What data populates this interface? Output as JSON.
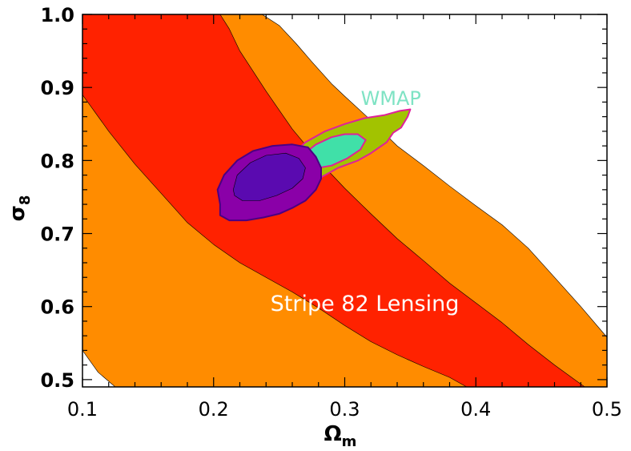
{
  "chart_data": {
    "type": "area",
    "title": "",
    "xlabel": "Ωm",
    "xlabel_main": "Ω",
    "xlabel_sub": "m",
    "ylabel": "σ8",
    "ylabel_main": "σ",
    "ylabel_sub": "8",
    "xlim": [
      0.1,
      0.5
    ],
    "ylim": [
      0.49,
      1.0
    ],
    "xticks": [
      0.1,
      0.2,
      0.3,
      0.4,
      0.5
    ],
    "yticks": [
      0.5,
      0.6,
      0.7,
      0.8,
      0.9,
      1.0
    ],
    "xtick_labels": [
      "0.1",
      "0.2",
      "0.3",
      "0.4",
      "0.5"
    ],
    "ytick_labels": [
      "0.5",
      "0.6",
      "0.7",
      "0.8",
      "0.9",
      "1.0"
    ],
    "grid": false,
    "annotations": [
      {
        "text": "Stripe 82 Lensing",
        "x": 0.3,
        "y": 0.605,
        "color": "#ffffff"
      },
      {
        "text": "WMAP",
        "x": 0.32,
        "y": 0.885,
        "color": "#7fe3c4"
      }
    ],
    "regions": [
      {
        "name": "lensing-95",
        "color": "#ff8c00",
        "points": [
          [
            0.1,
            0.49
          ],
          [
            0.1,
            1.0
          ],
          [
            0.237,
            1.0
          ],
          [
            0.25,
            0.985
          ],
          [
            0.263,
            0.96
          ],
          [
            0.275,
            0.935
          ],
          [
            0.29,
            0.905
          ],
          [
            0.3,
            0.888
          ],
          [
            0.32,
            0.855
          ],
          [
            0.34,
            0.82
          ],
          [
            0.36,
            0.793
          ],
          [
            0.38,
            0.765
          ],
          [
            0.4,
            0.738
          ],
          [
            0.42,
            0.712
          ],
          [
            0.44,
            0.68
          ],
          [
            0.46,
            0.64
          ],
          [
            0.48,
            0.6
          ],
          [
            0.5,
            0.558
          ],
          [
            0.5,
            0.49
          ],
          [
            0.5,
            0.49
          ],
          [
            0.5,
            0.49
          ]
        ],
        "lower": [
          [
            0.125,
            0.49
          ],
          [
            0.112,
            0.51
          ],
          [
            0.1,
            0.54
          ]
        ]
      },
      {
        "name": "lensing-68",
        "color": "#ff2200",
        "points": [
          [
            0.1,
            0.89
          ],
          [
            0.12,
            0.84
          ],
          [
            0.14,
            0.795
          ],
          [
            0.16,
            0.755
          ],
          [
            0.18,
            0.715
          ],
          [
            0.2,
            0.685
          ],
          [
            0.22,
            0.66
          ],
          [
            0.24,
            0.64
          ],
          [
            0.26,
            0.62
          ],
          [
            0.28,
            0.598
          ],
          [
            0.3,
            0.574
          ],
          [
            0.32,
            0.552
          ],
          [
            0.34,
            0.534
          ],
          [
            0.36,
            0.518
          ],
          [
            0.38,
            0.503
          ],
          [
            0.393,
            0.49
          ],
          [
            0.483,
            0.49
          ],
          [
            0.46,
            0.52
          ],
          [
            0.44,
            0.548
          ],
          [
            0.42,
            0.578
          ],
          [
            0.4,
            0.605
          ],
          [
            0.38,
            0.632
          ],
          [
            0.36,
            0.663
          ],
          [
            0.34,
            0.693
          ],
          [
            0.32,
            0.727
          ],
          [
            0.3,
            0.762
          ],
          [
            0.28,
            0.8
          ],
          [
            0.26,
            0.843
          ],
          [
            0.24,
            0.895
          ],
          [
            0.22,
            0.95
          ],
          [
            0.212,
            0.98
          ],
          [
            0.205,
            1.0
          ],
          [
            0.1,
            1.0
          ]
        ]
      },
      {
        "name": "wmap-95",
        "color": "#a2c300",
        "outline": "#e0209a",
        "points": [
          [
            0.255,
            0.8
          ],
          [
            0.27,
            0.825
          ],
          [
            0.285,
            0.84
          ],
          [
            0.3,
            0.85
          ],
          [
            0.315,
            0.858
          ],
          [
            0.33,
            0.862
          ],
          [
            0.342,
            0.868
          ],
          [
            0.35,
            0.87
          ],
          [
            0.348,
            0.86
          ],
          [
            0.343,
            0.845
          ],
          [
            0.337,
            0.838
          ],
          [
            0.332,
            0.825
          ],
          [
            0.32,
            0.81
          ],
          [
            0.31,
            0.8
          ],
          [
            0.295,
            0.79
          ],
          [
            0.28,
            0.775
          ],
          [
            0.27,
            0.77
          ],
          [
            0.26,
            0.775
          ],
          [
            0.255,
            0.785
          ]
        ]
      },
      {
        "name": "wmap-68",
        "color": "#40e0a8",
        "outline": "#e0209a",
        "points": [
          [
            0.268,
            0.808
          ],
          [
            0.278,
            0.822
          ],
          [
            0.29,
            0.832
          ],
          [
            0.3,
            0.836
          ],
          [
            0.31,
            0.836
          ],
          [
            0.316,
            0.828
          ],
          [
            0.312,
            0.815
          ],
          [
            0.302,
            0.803
          ],
          [
            0.29,
            0.793
          ],
          [
            0.28,
            0.79
          ],
          [
            0.27,
            0.795
          ]
        ]
      },
      {
        "name": "joint-95",
        "color": "#8a00a8",
        "outline": "#4b0082",
        "points": [
          [
            0.205,
            0.74
          ],
          [
            0.203,
            0.76
          ],
          [
            0.208,
            0.78
          ],
          [
            0.218,
            0.8
          ],
          [
            0.23,
            0.813
          ],
          [
            0.245,
            0.82
          ],
          [
            0.26,
            0.822
          ],
          [
            0.272,
            0.818
          ],
          [
            0.278,
            0.805
          ],
          [
            0.282,
            0.79
          ],
          [
            0.282,
            0.775
          ],
          [
            0.278,
            0.76
          ],
          [
            0.27,
            0.745
          ],
          [
            0.26,
            0.735
          ],
          [
            0.25,
            0.727
          ],
          [
            0.238,
            0.722
          ],
          [
            0.225,
            0.718
          ],
          [
            0.212,
            0.718
          ],
          [
            0.205,
            0.725
          ]
        ]
      },
      {
        "name": "joint-68",
        "color": "#5a0ab0",
        "points": [
          [
            0.215,
            0.76
          ],
          [
            0.218,
            0.78
          ],
          [
            0.228,
            0.797
          ],
          [
            0.24,
            0.807
          ],
          [
            0.255,
            0.81
          ],
          [
            0.265,
            0.803
          ],
          [
            0.27,
            0.79
          ],
          [
            0.268,
            0.775
          ],
          [
            0.26,
            0.762
          ],
          [
            0.248,
            0.752
          ],
          [
            0.235,
            0.745
          ],
          [
            0.222,
            0.745
          ],
          [
            0.216,
            0.752
          ]
        ]
      }
    ]
  }
}
